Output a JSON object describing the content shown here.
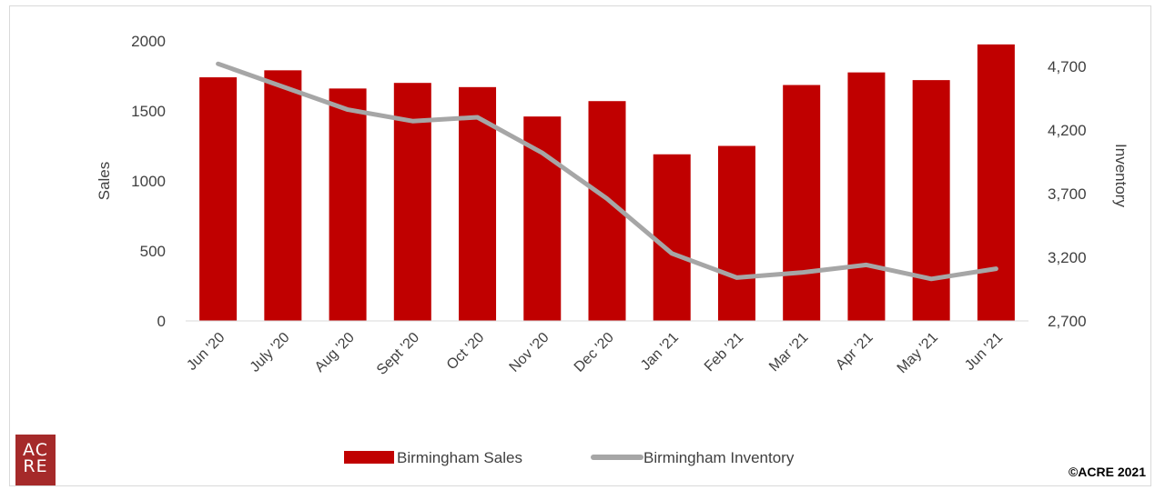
{
  "chart_data": {
    "type": "bar+line",
    "categories": [
      "Jun '20",
      "July '20",
      "Aug '20",
      "Sept '20",
      "Oct '20",
      "Nov '20",
      "Dec '20",
      "Jan '21",
      "Feb '21",
      "Mar '21",
      "Apr '21",
      "May '21",
      "Jun '21"
    ],
    "series": [
      {
        "name": "Birmingham Sales",
        "type": "bar",
        "axis": "left",
        "values": [
          1740,
          1790,
          1660,
          1700,
          1670,
          1460,
          1570,
          1190,
          1250,
          1685,
          1775,
          1720,
          1975
        ]
      },
      {
        "name": "Birmingham Inventory",
        "type": "line",
        "axis": "right",
        "values": [
          4720,
          4540,
          4360,
          4270,
          4300,
          4020,
          3660,
          3230,
          3040,
          3080,
          3140,
          3030,
          3110
        ]
      }
    ],
    "ylabel": "Sales",
    "y2label": "Inventory",
    "ylim": [
      0,
      2000
    ],
    "yticks": [
      "0",
      "500",
      "1000",
      "1500",
      "2000"
    ],
    "y2lim": [
      2700,
      4900
    ],
    "y2ticks": [
      "2,700",
      "3,200",
      "3,700",
      "4,200",
      "4,700"
    ],
    "grid": false,
    "legend_position": "bottom",
    "colors": {
      "bars": "#c00000",
      "line": "#a6a6a6",
      "axis_text": "#404040",
      "axis_line": "#d9d9d9"
    }
  },
  "logo": {
    "line1": "AC",
    "line2": "RE"
  },
  "copyright": "©ACRE 2021"
}
